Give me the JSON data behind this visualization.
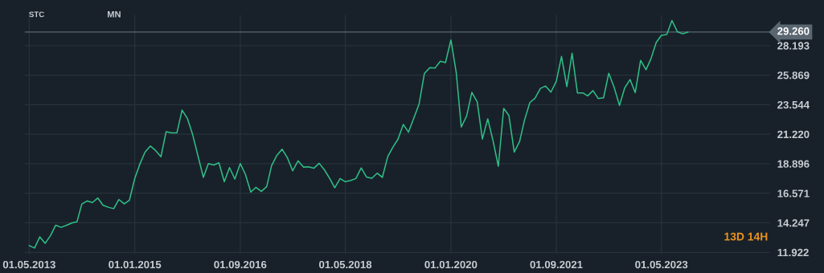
{
  "chart_data": {
    "type": "line",
    "x": [
      "2013-05",
      "2013-06",
      "2013-07",
      "2013-08",
      "2013-09",
      "2013-10",
      "2013-11",
      "2013-12",
      "2014-01",
      "2014-02",
      "2014-03",
      "2014-04",
      "2014-05",
      "2014-06",
      "2014-07",
      "2014-08",
      "2014-09",
      "2014-10",
      "2014-11",
      "2014-12",
      "2015-01",
      "2015-02",
      "2015-03",
      "2015-04",
      "2015-05",
      "2015-06",
      "2015-07",
      "2015-08",
      "2015-09",
      "2015-10",
      "2015-11",
      "2015-12",
      "2016-01",
      "2016-02",
      "2016-03",
      "2016-04",
      "2016-05",
      "2016-06",
      "2016-07",
      "2016-08",
      "2016-09",
      "2016-10",
      "2016-11",
      "2016-12",
      "2017-01",
      "2017-02",
      "2017-03",
      "2017-04",
      "2017-05",
      "2017-06",
      "2017-07",
      "2017-08",
      "2017-09",
      "2017-10",
      "2017-11",
      "2017-12",
      "2018-01",
      "2018-02",
      "2018-03",
      "2018-04",
      "2018-05",
      "2018-06",
      "2018-07",
      "2018-08",
      "2018-09",
      "2018-10",
      "2018-11",
      "2018-12",
      "2019-01",
      "2019-02",
      "2019-03",
      "2019-04",
      "2019-05",
      "2019-06",
      "2019-07",
      "2019-08",
      "2019-09",
      "2019-10",
      "2019-11",
      "2019-12",
      "2020-01",
      "2020-02",
      "2020-03",
      "2020-04",
      "2020-05",
      "2020-06",
      "2020-07",
      "2020-08",
      "2020-09",
      "2020-10",
      "2020-11",
      "2020-12",
      "2021-01",
      "2021-02",
      "2021-03",
      "2021-04",
      "2021-05",
      "2021-06",
      "2021-07",
      "2021-08",
      "2021-09",
      "2021-10",
      "2021-11",
      "2021-12",
      "2022-01",
      "2022-02",
      "2022-03",
      "2022-04",
      "2022-05",
      "2022-06",
      "2022-07",
      "2022-08",
      "2022-09",
      "2022-10",
      "2022-11",
      "2022-12",
      "2023-01",
      "2023-02",
      "2023-03",
      "2023-04",
      "2023-05",
      "2023-06",
      "2023-07",
      "2023-08",
      "2023-09",
      "2023-10"
    ],
    "series": [
      {
        "color": "#2fbf86",
        "values": [
          12.45,
          12.26,
          13.14,
          12.63,
          13.24,
          14.06,
          13.89,
          14.04,
          14.23,
          14.33,
          15.72,
          15.97,
          15.84,
          16.2,
          15.64,
          15.47,
          15.36,
          16.08,
          15.74,
          16.03,
          17.75,
          18.93,
          19.81,
          20.29,
          19.94,
          19.45,
          21.42,
          21.32,
          21.32,
          23.12,
          22.45,
          21.19,
          19.51,
          17.82,
          18.91,
          18.8,
          18.97,
          17.48,
          18.59,
          17.69,
          18.91,
          18.05,
          16.66,
          17.04,
          16.72,
          17.1,
          18.74,
          19.56,
          20.04,
          19.35,
          18.34,
          19.12,
          18.63,
          18.65,
          18.55,
          18.93,
          18.4,
          17.71,
          17.0,
          17.73,
          17.48,
          17.58,
          17.73,
          18.57,
          17.84,
          17.75,
          18.15,
          17.82,
          19.45,
          20.23,
          20.82,
          21.99,
          21.38,
          22.49,
          23.58,
          26.0,
          26.46,
          26.42,
          26.96,
          26.86,
          28.64,
          26.06,
          21.78,
          22.66,
          24.51,
          23.77,
          20.84,
          22.43,
          20.67,
          18.7,
          23.25,
          22.7,
          19.81,
          20.65,
          22.31,
          23.71,
          24.05,
          24.82,
          25.01,
          24.53,
          25.39,
          27.34,
          24.97,
          27.59,
          24.47,
          24.47,
          24.24,
          24.65,
          24.03,
          24.09,
          26.02,
          24.91,
          23.48,
          24.86,
          25.52,
          24.49,
          27.03,
          26.29,
          27.13,
          28.43,
          29.0,
          29.06,
          30.17,
          29.29,
          29.12,
          29.26
        ]
      }
    ],
    "xlim": [
      "2013-04-05",
      "2025-01-20"
    ],
    "xticks": [
      {
        "value": "2013-05-01",
        "label": "01.05.2013"
      },
      {
        "value": "2015-01-01",
        "label": "01.01.2015"
      },
      {
        "value": "2016-09-01",
        "label": "01.09.2016"
      },
      {
        "value": "2018-05-01",
        "label": "01.05.2018"
      },
      {
        "value": "2020-01-01",
        "label": "01.01.2020"
      },
      {
        "value": "2021-09-01",
        "label": "01.09.2021"
      },
      {
        "value": "2023-05-01",
        "label": "01.05.2023"
      }
    ],
    "ylim": [
      11.8,
      30.6
    ],
    "yticks": [
      11.922,
      14.247,
      16.571,
      18.896,
      {
        "value": 21.22,
        "label": "21.220"
      },
      23.544,
      25.869,
      28.193
    ],
    "ref_lines": [
      {
        "axis": "y",
        "value": 29.26,
        "label": "29.260",
        "color": "#5a6670"
      }
    ],
    "grid": true,
    "annotations": [
      "STC",
      "MN",
      "13D 14H"
    ]
  }
}
